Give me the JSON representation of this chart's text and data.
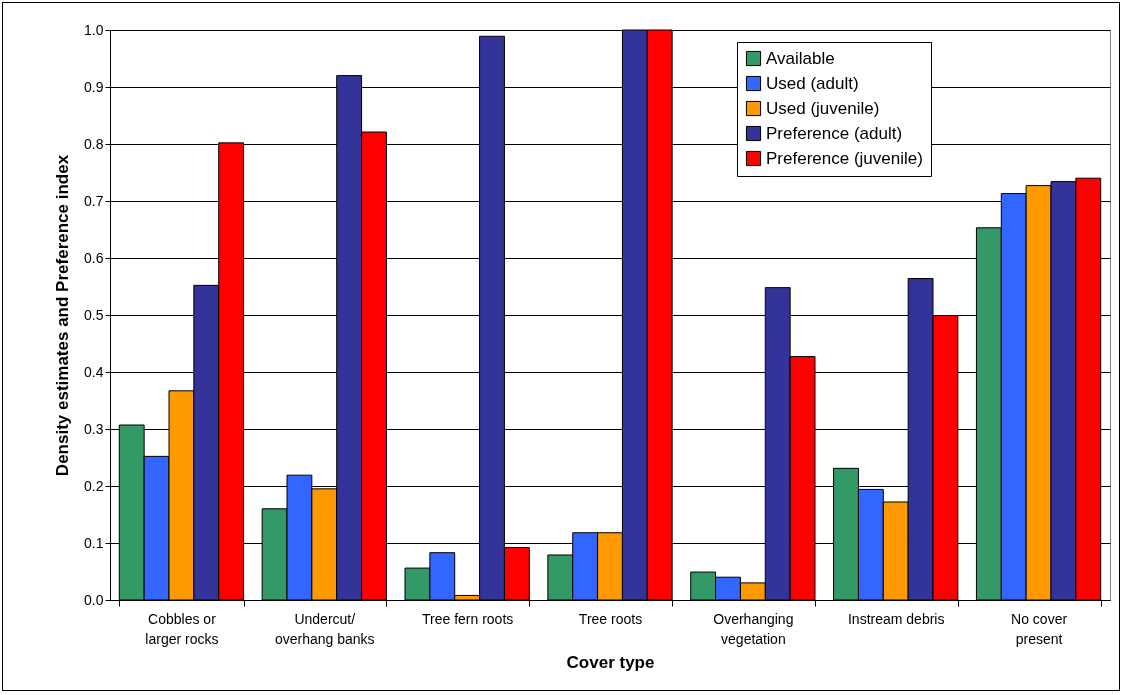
{
  "chart_data": {
    "type": "bar",
    "xlabel": "Cover type",
    "ylabel": "Density estimates and Preference index",
    "categories": [
      "Cobbles or larger rocks",
      "Undercut/ overhang banks",
      "Tree fern roots",
      "Tree roots",
      "Overhanging vegetation",
      "Instream debris",
      "No cover present"
    ],
    "series": [
      {
        "name": "Available",
        "color": "#339966",
        "values": [
          0.307,
          0.16,
          0.056,
          0.079,
          0.049,
          0.231,
          0.653
        ]
      },
      {
        "name": "Used (adult)",
        "color": "#3366ff",
        "values": [
          0.252,
          0.219,
          0.083,
          0.118,
          0.04,
          0.194,
          0.713
        ]
      },
      {
        "name": "Used (juvenile)",
        "color": "#ff9900",
        "values": [
          0.367,
          0.195,
          0.008,
          0.118,
          0.03,
          0.172,
          0.727
        ]
      },
      {
        "name": "Preference (adult)",
        "color": "#333399",
        "values": [
          0.552,
          0.92,
          0.989,
          1.0,
          0.548,
          0.564,
          0.734
        ]
      },
      {
        "name": "Preference (juvenile)",
        "color": "#ff0000",
        "values": [
          0.802,
          0.821,
          0.092,
          1.0,
          0.427,
          0.499,
          0.74
        ]
      }
    ],
    "ylim": [
      0,
      1
    ],
    "yticks": [
      {
        "value": 0,
        "label": "0.0"
      },
      0.1,
      0.2,
      0.3,
      0.4,
      0.5,
      0.6,
      0.7,
      0.8,
      0.9,
      {
        "value": 1,
        "label": "1.0"
      }
    ],
    "grid": "y",
    "legend": "top right"
  }
}
